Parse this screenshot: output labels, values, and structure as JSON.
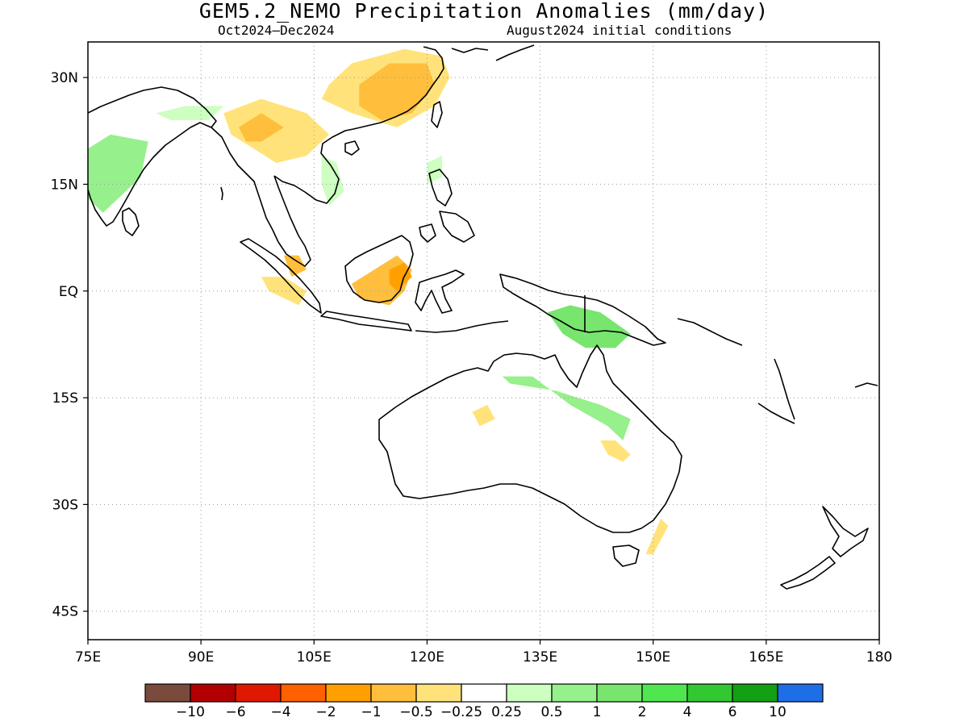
{
  "header": {
    "title": "GEM5.2_NEMO Precipitation Anomalies (mm/day)",
    "period": "Oct2024–Dec2024",
    "init": "August2024 initial conditions"
  },
  "map": {
    "lon_range": [
      75,
      180
    ],
    "lat_range": [
      -49,
      35
    ],
    "grid": "dotted",
    "lat_ticks": [
      {
        "value": 30,
        "label": "30N"
      },
      {
        "value": 15,
        "label": "15N"
      },
      {
        "value": 0,
        "label": "EQ"
      },
      {
        "value": -15,
        "label": "15S"
      },
      {
        "value": -30,
        "label": "30S"
      },
      {
        "value": -45,
        "label": "45S"
      }
    ],
    "lon_ticks": [
      {
        "value": 75,
        "label": "75E"
      },
      {
        "value": 90,
        "label": "90E"
      },
      {
        "value": 105,
        "label": "105E"
      },
      {
        "value": 120,
        "label": "120E"
      },
      {
        "value": 135,
        "label": "135E"
      },
      {
        "value": 150,
        "label": "150E"
      },
      {
        "value": 165,
        "label": "165E"
      },
      {
        "value": 180,
        "label": "180"
      }
    ]
  },
  "colorbar": {
    "colors": [
      "#7a4a3c",
      "#b20000",
      "#e01800",
      "#ff6000",
      "#ffa000",
      "#ffbe3c",
      "#ffe37a",
      "#ffffff",
      "#ccffc0",
      "#96f08c",
      "#78e66e",
      "#50e650",
      "#32c832",
      "#14a014",
      "#1e6ee6"
    ],
    "labels": [
      "−10",
      "−6",
      "−4",
      "−2",
      "−1",
      "−0.5",
      "−0.25",
      "0.25",
      "0.5",
      "1",
      "2",
      "4",
      "6",
      "10"
    ]
  },
  "anomalies": [
    {
      "name": "south-china-dry",
      "level": "-0.5",
      "color": "#ffe37a",
      "poly": [
        [
          107,
          29
        ],
        [
          110,
          32
        ],
        [
          117,
          34
        ],
        [
          122,
          33
        ],
        [
          123,
          30
        ],
        [
          121,
          26
        ],
        [
          116,
          23
        ],
        [
          110,
          25
        ],
        [
          106,
          27
        ]
      ]
    },
    {
      "name": "south-china-dry-core",
      "level": "-1",
      "color": "#ffbe3c",
      "poly": [
        [
          111,
          29
        ],
        [
          115,
          32
        ],
        [
          120,
          32
        ],
        [
          121,
          29
        ],
        [
          118,
          25
        ],
        [
          114,
          24
        ],
        [
          111,
          26
        ]
      ]
    },
    {
      "name": "indochina-dry",
      "level": "-0.5",
      "color": "#ffe37a",
      "poly": [
        [
          93,
          25
        ],
        [
          98,
          27
        ],
        [
          104,
          25
        ],
        [
          107,
          22
        ],
        [
          104,
          19
        ],
        [
          100,
          18
        ],
        [
          97,
          20
        ],
        [
          94,
          22
        ]
      ]
    },
    {
      "name": "myanmar-dry-core",
      "level": "-1",
      "color": "#ffbe3c",
      "poly": [
        [
          95,
          23
        ],
        [
          98,
          25
        ],
        [
          101,
          23
        ],
        [
          98,
          21
        ],
        [
          96,
          21
        ]
      ]
    },
    {
      "name": "india-wet",
      "level": "0.5",
      "color": "#96f08c",
      "poly": [
        [
          75,
          20
        ],
        [
          78,
          22
        ],
        [
          83,
          21
        ],
        [
          82,
          16
        ],
        [
          79,
          13
        ],
        [
          77,
          11
        ],
        [
          75,
          13
        ]
      ]
    },
    {
      "name": "india-wet-light",
      "level": "0.25",
      "color": "#ccffc0",
      "poly": [
        [
          84,
          25
        ],
        [
          88,
          26
        ],
        [
          93,
          26
        ],
        [
          91,
          24
        ],
        [
          86,
          24
        ]
      ]
    },
    {
      "name": "vietnam-wet",
      "level": "0.25",
      "color": "#ccffc0",
      "poly": [
        [
          106,
          19
        ],
        [
          108,
          18
        ],
        [
          109,
          14
        ],
        [
          107,
          12
        ],
        [
          106,
          15
        ]
      ]
    },
    {
      "name": "philippines-wet",
      "level": "0.25",
      "color": "#ccffc0",
      "poly": [
        [
          120,
          18
        ],
        [
          122,
          19
        ],
        [
          122,
          16
        ],
        [
          120,
          15
        ]
      ]
    },
    {
      "name": "borneo-dry",
      "level": "-1",
      "color": "#ffbe3c",
      "poly": [
        [
          110,
          1
        ],
        [
          113,
          3
        ],
        [
          116,
          5
        ],
        [
          118,
          3
        ],
        [
          117,
          0
        ],
        [
          115,
          -2
        ],
        [
          111,
          -1
        ]
      ]
    },
    {
      "name": "borneo-dry-core",
      "level": "-2",
      "color": "#ffa000",
      "poly": [
        [
          115,
          3
        ],
        [
          117,
          4
        ],
        [
          118,
          2
        ],
        [
          116,
          0
        ],
        [
          115,
          1
        ]
      ]
    },
    {
      "name": "malaysia-dry",
      "level": "-1",
      "color": "#ffbe3c",
      "poly": [
        [
          101,
          5
        ],
        [
          103,
          5
        ],
        [
          104,
          3
        ],
        [
          102,
          2
        ]
      ]
    },
    {
      "name": "sumatra-dry",
      "level": "-0.5",
      "color": "#ffe37a",
      "poly": [
        [
          98,
          2
        ],
        [
          101,
          2
        ],
        [
          104,
          0
        ],
        [
          103,
          -2
        ],
        [
          99,
          0
        ]
      ]
    },
    {
      "name": "new-guinea-wet",
      "level": "1",
      "color": "#78e66e",
      "poly": [
        [
          136,
          -3
        ],
        [
          139,
          -2
        ],
        [
          143,
          -3
        ],
        [
          147,
          -6
        ],
        [
          145,
          -8
        ],
        [
          141,
          -8
        ],
        [
          138,
          -6
        ]
      ]
    },
    {
      "name": "n-australia-wet",
      "level": "0.5",
      "color": "#96f08c",
      "poly": [
        [
          130,
          -12
        ],
        [
          134,
          -12
        ],
        [
          139,
          -16
        ],
        [
          144,
          -19
        ],
        [
          146,
          -21
        ],
        [
          147,
          -18
        ],
        [
          143,
          -16
        ],
        [
          137,
          -14
        ],
        [
          131,
          -13
        ]
      ]
    },
    {
      "name": "kimberley-dry",
      "level": "-0.5",
      "color": "#ffe37a",
      "poly": [
        [
          126,
          -17
        ],
        [
          128,
          -16
        ],
        [
          129,
          -18
        ],
        [
          127,
          -19
        ]
      ]
    },
    {
      "name": "queensland-dry",
      "level": "-0.5",
      "color": "#ffe37a",
      "poly": [
        [
          143,
          -21
        ],
        [
          145,
          -21
        ],
        [
          147,
          -23
        ],
        [
          146,
          -24
        ],
        [
          144,
          -23
        ]
      ]
    },
    {
      "name": "se-australia-dry",
      "level": "-0.5",
      "color": "#ffe37a",
      "poly": [
        [
          149,
          -37
        ],
        [
          151,
          -32
        ],
        [
          152,
          -33
        ],
        [
          150,
          -37
        ]
      ]
    }
  ]
}
